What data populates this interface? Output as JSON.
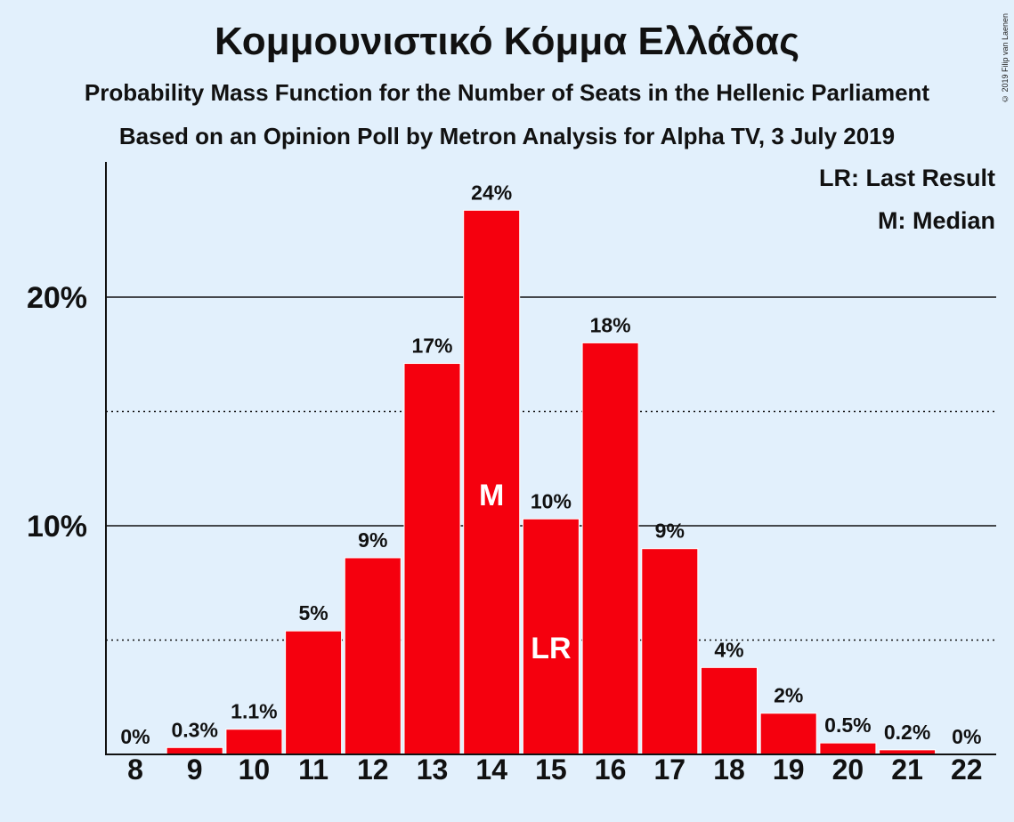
{
  "title": "Κομμουνιστικό Κόμμα Ελλάδας",
  "subtitle1": "Probability Mass Function for the Number of Seats in the Hellenic Parliament",
  "subtitle2": "Based on an Opinion Poll by Metron Analysis for Alpha TV, 3 July 2019",
  "copyright": "© 2019 Filip van Laenen",
  "legend": {
    "last_result": "LR: Last Result",
    "median": "M: Median"
  },
  "colors": {
    "background": "#e2f0fc",
    "bar": "#f5000e",
    "text": "#111111"
  },
  "chart_data": {
    "type": "bar",
    "categories": [
      "8",
      "9",
      "10",
      "11",
      "12",
      "13",
      "14",
      "15",
      "16",
      "17",
      "18",
      "19",
      "20",
      "21",
      "22"
    ],
    "values": [
      0,
      0.3,
      1.1,
      5.4,
      8.6,
      17.1,
      23.8,
      10.3,
      18.0,
      9.0,
      3.8,
      1.8,
      0.5,
      0.2,
      0
    ],
    "data_labels": [
      "0%",
      "0.3%",
      "1.1%",
      "5%",
      "9%",
      "17%",
      "24%",
      "10%",
      "18%",
      "9%",
      "4%",
      "2%",
      "0.5%",
      "0.2%",
      "0%"
    ],
    "ylim": [
      0,
      26
    ],
    "yticks": [
      {
        "value": 10,
        "label": "10%",
        "style": "solid"
      },
      {
        "value": 20,
        "label": "20%",
        "style": "solid"
      }
    ],
    "ygrid_minor": [
      5,
      15
    ],
    "median_category": "14",
    "median_marker": "M",
    "last_result_category": "15",
    "last_result_marker": "LR",
    "legend_position": "top-right",
    "unit": "%"
  }
}
